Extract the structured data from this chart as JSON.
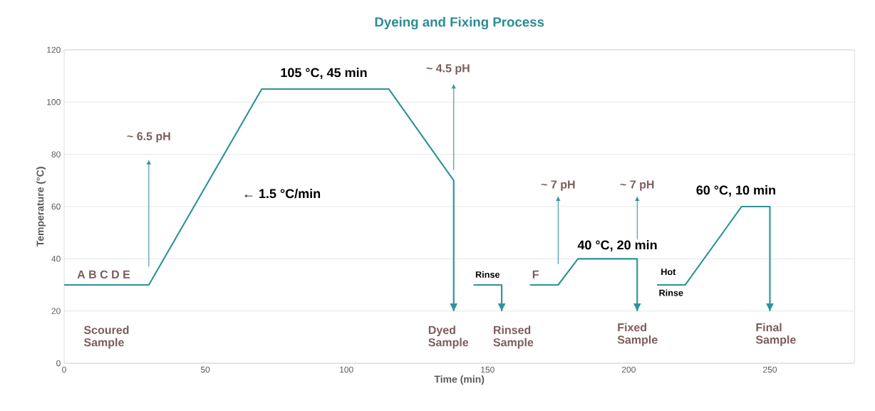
{
  "chart_data": {
    "type": "line",
    "title": "Dyeing and Fixing Process",
    "xlabel": "Time (min)",
    "ylabel": "Temperature (°C)",
    "xlim": [
      0,
      280
    ],
    "ylim": [
      0,
      120
    ],
    "xticks": [
      0,
      50,
      100,
      150,
      200,
      250
    ],
    "yticks": [
      0,
      20,
      40,
      60,
      80,
      100,
      120
    ],
    "grid": "y",
    "series": [
      {
        "color": "#2e9399",
        "x": [
          0,
          30,
          70,
          115,
          138,
          138
        ],
        "values": [
          30,
          30,
          105,
          105,
          70,
          20
        ]
      },
      {
        "color": "#2e9399",
        "x": [
          145,
          155,
          155
        ],
        "values": [
          30,
          30,
          20
        ]
      },
      {
        "color": "#2e9399",
        "x": [
          165,
          175,
          182,
          203,
          203
        ],
        "values": [
          30,
          30,
          40,
          40,
          20
        ]
      },
      {
        "color": "#2e9399",
        "x": [
          210,
          220,
          240,
          250,
          250
        ],
        "values": [
          30,
          30,
          60,
          60,
          20
        ]
      }
    ],
    "annotations": [
      "105 °C, 45 min",
      "~ 4.5 pH",
      "~ 6.5 pH",
      "← 1.5 °C/min",
      "~ 7 pH",
      "~ 7 pH",
      "40 °C, 20 min",
      "60 °C, 10 min",
      "A B C D E",
      "Rinse",
      "F",
      "Hot",
      "Rinse",
      "Scoured Sample",
      "Dyed Sample",
      "Rinsed Sample",
      "Fixed Sample",
      "Final Sample"
    ]
  }
}
